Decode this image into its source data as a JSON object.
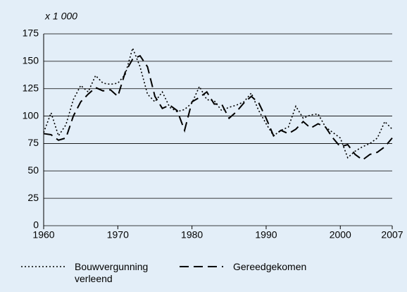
{
  "chart_data": {
    "type": "line",
    "unit_label": "x 1 000",
    "x": [
      1960,
      1961,
      1962,
      1963,
      1964,
      1965,
      1966,
      1967,
      1968,
      1969,
      1970,
      1971,
      1972,
      1973,
      1974,
      1975,
      1976,
      1977,
      1978,
      1979,
      1980,
      1981,
      1982,
      1983,
      1984,
      1985,
      1986,
      1987,
      1988,
      1989,
      1990,
      1991,
      1992,
      1993,
      1994,
      1995,
      1996,
      1997,
      1998,
      1999,
      2000,
      2001,
      2002,
      2003,
      2004,
      2005,
      2006,
      2007
    ],
    "series": [
      {
        "name": "Bouwvergunning verleend",
        "color": "#000000",
        "dash": "dotted",
        "values": [
          85,
          103,
          82,
          92,
          115,
          128,
          122,
          137,
          130,
          129,
          130,
          138,
          162,
          145,
          120,
          113,
          122,
          108,
          104,
          106,
          112,
          127,
          115,
          114,
          105,
          108,
          110,
          113,
          121,
          105,
          93,
          82,
          87,
          90,
          109,
          98,
          101,
          102,
          90,
          85,
          80,
          62,
          68,
          72,
          75,
          80,
          95,
          88
        ]
      },
      {
        "name": "Gereedgekomen",
        "color": "#000000",
        "dash": "dashed",
        "values": [
          84,
          83,
          78,
          80,
          100,
          113,
          120,
          126,
          123,
          124,
          118,
          140,
          152,
          155,
          145,
          118,
          107,
          110,
          105,
          87,
          113,
          117,
          122,
          111,
          111,
          98,
          104,
          112,
          118,
          112,
          98,
          82,
          87,
          84,
          88,
          95,
          89,
          93,
          90,
          80,
          72,
          74,
          65,
          60,
          65,
          67,
          72,
          80
        ]
      }
    ],
    "xlim": [
      1960,
      2007
    ],
    "xticks": [
      1960,
      1970,
      1980,
      1990,
      2000,
      2007
    ],
    "ylim": [
      0,
      175
    ],
    "yticks": [
      0,
      25,
      50,
      75,
      100,
      125,
      150,
      175
    ],
    "grid": true
  }
}
